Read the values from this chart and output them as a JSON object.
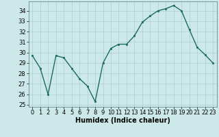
{
  "x": [
    0,
    1,
    2,
    3,
    4,
    5,
    6,
    7,
    8,
    9,
    10,
    11,
    12,
    13,
    14,
    15,
    16,
    17,
    18,
    19,
    20,
    21,
    22,
    23
  ],
  "y": [
    29.7,
    28.5,
    26.0,
    29.7,
    29.5,
    28.5,
    27.5,
    26.8,
    25.3,
    29.0,
    30.4,
    30.8,
    30.8,
    31.6,
    32.9,
    33.5,
    34.0,
    34.2,
    34.5,
    34.0,
    32.2,
    30.5,
    29.8,
    29.0
  ],
  "xlabel": "Humidex (Indice chaleur)",
  "xlim": [
    -0.5,
    23.5
  ],
  "ylim": [
    24.8,
    34.9
  ],
  "yticks": [
    25,
    26,
    27,
    28,
    29,
    30,
    31,
    32,
    33,
    34
  ],
  "xticks": [
    0,
    1,
    2,
    3,
    4,
    5,
    6,
    7,
    8,
    9,
    10,
    11,
    12,
    13,
    14,
    15,
    16,
    17,
    18,
    19,
    20,
    21,
    22,
    23
  ],
  "line_color": "#1a6b5a",
  "marker_color": "#1a6b5a",
  "bg_color": "#cce8e8",
  "grid_color": "#aacfcf",
  "label_fontsize": 7,
  "tick_fontsize": 6
}
